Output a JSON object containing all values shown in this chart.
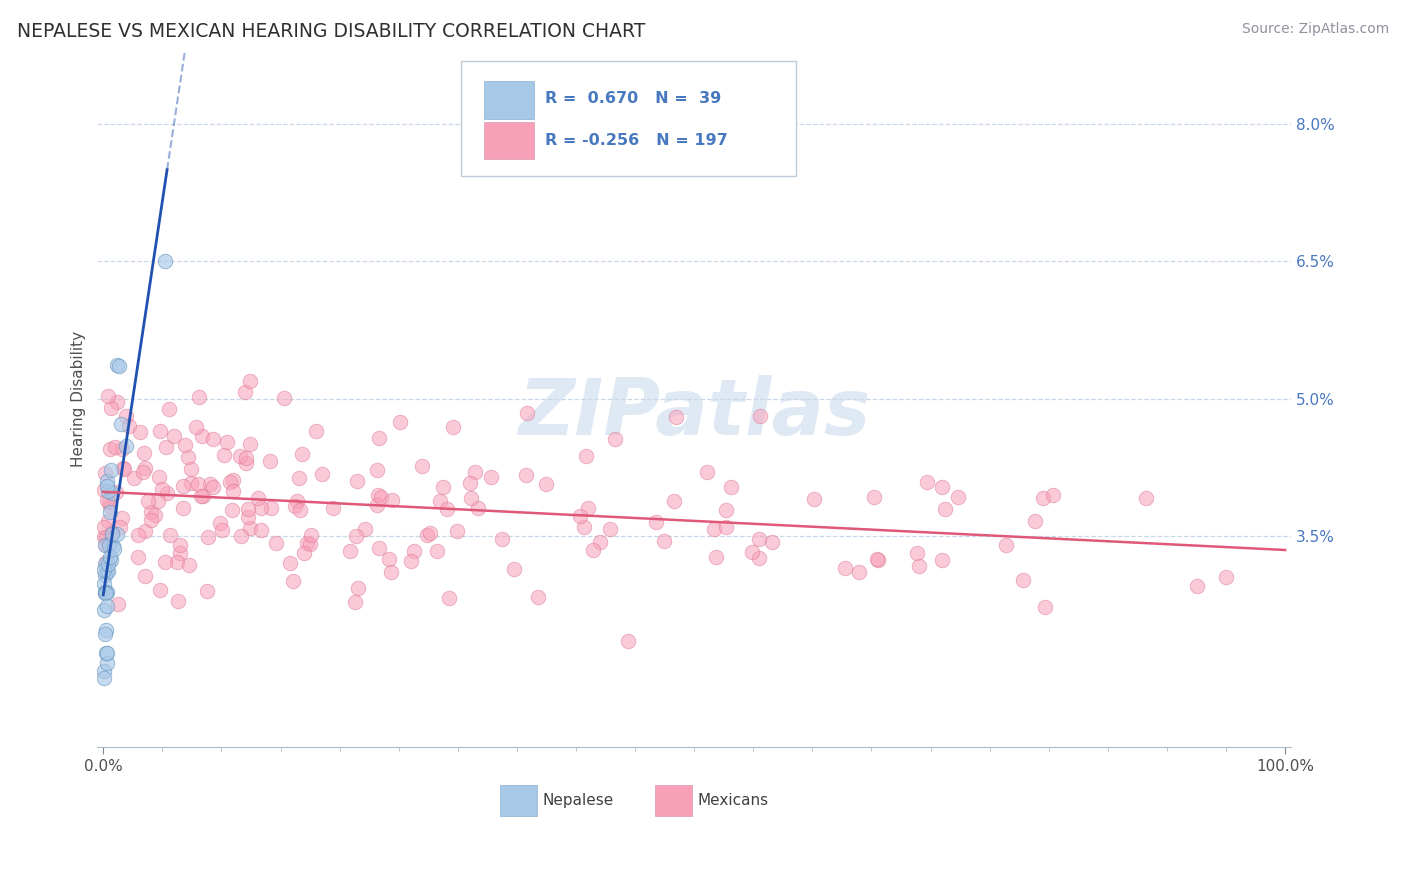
{
  "title": "NEPALESE VS MEXICAN HEARING DISABILITY CORRELATION CHART",
  "source": "Source: ZipAtlas.com",
  "ylabel": "Hearing Disability",
  "watermark": "ZIPatlas",
  "xlim": [
    -0.005,
    1.005
  ],
  "ylim": [
    0.012,
    0.088
  ],
  "yticks": [
    0.035,
    0.05,
    0.065,
    0.08
  ],
  "ytick_labels": [
    "3.5%",
    "5.0%",
    "6.5%",
    "8.0%"
  ],
  "nepalese_color": "#a8c8e8",
  "nepalese_edge": "#6090b8",
  "mexican_color": "#f8a0b8",
  "mexican_edge": "#d87090",
  "blue_line_color": "#2050b0",
  "pink_line_color": "#e05878",
  "grid_color": "#c8d8e8",
  "background_color": "#ffffff",
  "legend_r1": "R =  0.670",
  "legend_n1": "N =  39",
  "legend_r2": "R = -0.256",
  "legend_n2": "N = 197",
  "tick_color": "#4878c0",
  "source_color": "#9090a0",
  "title_color": "#303030"
}
